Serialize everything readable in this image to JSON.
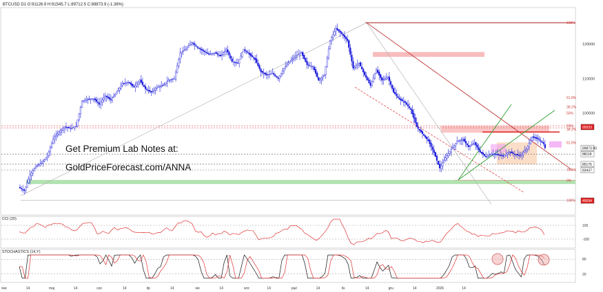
{
  "header": {
    "title": "BTCUSD D1  O:91126.9  H:91545.7  L:89712.5  C:89873.9  (-1.38%)"
  },
  "promo": {
    "line1": "Get Premium Lab Notes at:",
    "line2": "GoldPriceForecast.com/ANNA"
  },
  "panels": {
    "cci_label": "CCI (20)",
    "stoch_label": "STOCHASTICS (14,Y)"
  },
  "colors": {
    "up": "#ffffff",
    "down": "#1a1adc",
    "wick": "#1a1adc",
    "red": "#e02020",
    "green": "#2e9e2e",
    "fib": "#d04040"
  },
  "chart_data": {
    "type": "candlestick",
    "symbol": "BTCUSD",
    "timeframe": "D1",
    "ylim": [
      73000,
      130000
    ],
    "x_tick_labels": [
      "kwi",
      "14",
      "maj",
      "14",
      "cze",
      "14",
      "lip",
      "14",
      "sie",
      "14",
      "wrz",
      "14",
      "paź",
      "14",
      "lis",
      "14",
      "gru",
      "14",
      "2026",
      "14"
    ],
    "y_tick_labels": [
      "120000",
      "110000",
      "100000",
      "90000"
    ],
    "price_level_tags": [
      {
        "label": "95933",
        "value": 95933,
        "color": "#e02020"
      },
      {
        "label": "89873.90",
        "value": 89874,
        "color": "#333333"
      },
      {
        "label": "88118",
        "value": 88118,
        "color": "#333333"
      },
      {
        "label": "85176",
        "value": 85176,
        "color": "#333333"
      },
      {
        "label": "83437",
        "value": 83437,
        "color": "#333333"
      },
      {
        "label": "45694",
        "value": 74600,
        "color": "#e02020"
      }
    ],
    "fib_labels": [
      {
        "label": "100%",
        "value": 126200
      },
      {
        "label": "61.8%",
        "value": 104500
      },
      {
        "label": "38.2%",
        "value": 101800
      },
      {
        "label": "50%",
        "value": 100000
      },
      {
        "label": "50%",
        "value": 96300
      },
      {
        "label": "38.2%",
        "value": 95300
      },
      {
        "label": "61.8%",
        "value": 91400
      },
      {
        "label": "78.6%",
        "value": 83600
      },
      {
        "label": "0%",
        "value": 80500
      },
      {
        "label": "100%",
        "value": 74700
      }
    ],
    "close_path": [
      [
        0,
        78500
      ],
      [
        4,
        77500
      ],
      [
        8,
        82000
      ],
      [
        12,
        84500
      ],
      [
        16,
        85500
      ],
      [
        20,
        87500
      ],
      [
        24,
        92500
      ],
      [
        28,
        94500
      ],
      [
        32,
        96000
      ],
      [
        36,
        95500
      ],
      [
        40,
        96200
      ],
      [
        44,
        103500
      ],
      [
        48,
        104000
      ],
      [
        52,
        104200
      ],
      [
        56,
        102500
      ],
      [
        60,
        105000
      ],
      [
        64,
        103800
      ],
      [
        68,
        106000
      ],
      [
        72,
        108500
      ],
      [
        76,
        109000
      ],
      [
        80,
        107500
      ],
      [
        84,
        109500
      ],
      [
        88,
        107000
      ],
      [
        92,
        106000
      ],
      [
        96,
        107500
      ],
      [
        100,
        108000
      ],
      [
        104,
        109500
      ],
      [
        108,
        110000
      ],
      [
        112,
        117500
      ],
      [
        116,
        118500
      ],
      [
        120,
        120500
      ],
      [
        124,
        119000
      ],
      [
        128,
        118000
      ],
      [
        132,
        117000
      ],
      [
        136,
        117500
      ],
      [
        140,
        116500
      ],
      [
        144,
        118500
      ],
      [
        148,
        115000
      ],
      [
        152,
        114500
      ],
      [
        156,
        118500
      ],
      [
        160,
        117000
      ],
      [
        164,
        115500
      ],
      [
        168,
        112000
      ],
      [
        172,
        111000
      ],
      [
        176,
        111500
      ],
      [
        180,
        110000
      ],
      [
        184,
        113000
      ],
      [
        188,
        115000
      ],
      [
        192,
        116500
      ],
      [
        196,
        117500
      ],
      [
        200,
        114000
      ],
      [
        204,
        113500
      ],
      [
        208,
        109500
      ],
      [
        212,
        111000
      ],
      [
        216,
        121000
      ],
      [
        220,
        124500
      ],
      [
        224,
        123000
      ],
      [
        228,
        121000
      ],
      [
        232,
        113000
      ],
      [
        236,
        114500
      ],
      [
        240,
        111000
      ],
      [
        244,
        108000
      ],
      [
        248,
        112500
      ],
      [
        252,
        109500
      ],
      [
        256,
        110500
      ],
      [
        260,
        106000
      ],
      [
        264,
        104000
      ],
      [
        268,
        103000
      ],
      [
        272,
        101000
      ],
      [
        276,
        96000
      ],
      [
        280,
        94000
      ],
      [
        284,
        92000
      ],
      [
        288,
        88500
      ],
      [
        292,
        84000
      ],
      [
        296,
        87000
      ],
      [
        300,
        89500
      ],
      [
        304,
        91800
      ],
      [
        308,
        92300
      ],
      [
        312,
        90200
      ],
      [
        316,
        91300
      ],
      [
        320,
        88700
      ],
      [
        324,
        87300
      ],
      [
        328,
        88200
      ],
      [
        332,
        87900
      ],
      [
        336,
        87500
      ],
      [
        340,
        88800
      ],
      [
        344,
        88000
      ],
      [
        348,
        87600
      ],
      [
        352,
        89500
      ],
      [
        356,
        93000
      ],
      [
        360,
        92500
      ],
      [
        364,
        91100
      ],
      [
        365,
        89874
      ]
    ],
    "cci_ylim": [
      -200,
      200
    ],
    "cci_tick_labels": [
      "100",
      "-100"
    ],
    "stoch_ylim": [
      0,
      100
    ],
    "stoch_tick_labels": [
      "80",
      "20"
    ]
  }
}
